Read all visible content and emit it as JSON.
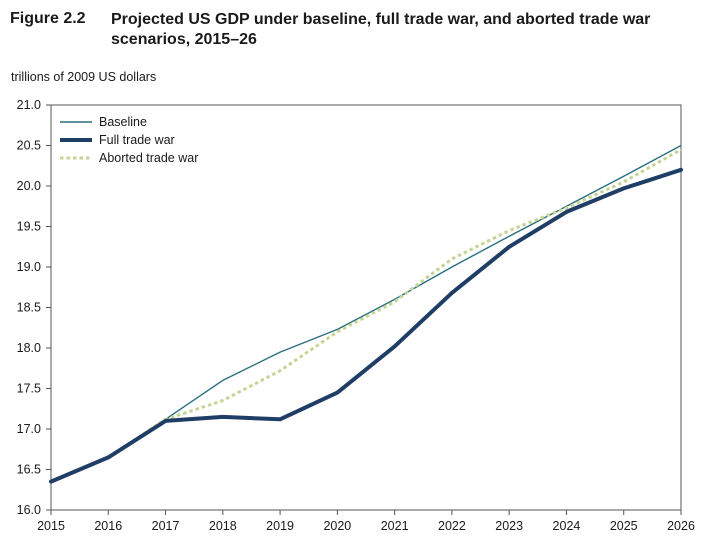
{
  "figure": {
    "label": "Figure 2.2",
    "title": "Projected US GDP under baseline, full trade war, and aborted trade war scenarios, 2015–26",
    "units": "trillions of 2009 US dollars"
  },
  "chart_data": {
    "type": "line",
    "title": "Projected US GDP under baseline, full trade war, and aborted trade war scenarios, 2015–26",
    "xlabel": "",
    "ylabel": "trillions of 2009 US dollars",
    "x": [
      2015,
      2016,
      2017,
      2018,
      2019,
      2020,
      2021,
      2022,
      2023,
      2024,
      2025,
      2026
    ],
    "x_tick_labels": [
      "2015",
      "2016",
      "2017",
      "2018",
      "2019",
      "2020",
      "2021",
      "2022",
      "2023",
      "2024",
      "2025",
      "2026"
    ],
    "ylim": [
      16.0,
      21.0
    ],
    "y_ticks": [
      16.0,
      16.5,
      17.0,
      17.5,
      18.0,
      18.5,
      19.0,
      19.5,
      20.0,
      20.5,
      21.0
    ],
    "y_tick_labels": [
      "16.0",
      "16.5",
      "17.0",
      "17.5",
      "18.0",
      "18.5",
      "19.0",
      "19.5",
      "20.0",
      "20.5",
      "21.0"
    ],
    "grid": false,
    "legend_position": "top-left",
    "series": [
      {
        "name": "Baseline",
        "color": "#2a6f7f",
        "style": "thin-solid",
        "values": [
          16.35,
          16.65,
          17.12,
          17.6,
          17.95,
          18.23,
          18.6,
          19.0,
          19.38,
          19.75,
          20.12,
          20.5
        ]
      },
      {
        "name": "Full trade war",
        "color": "#1f3e66",
        "style": "thick-solid",
        "values": [
          16.35,
          16.65,
          17.1,
          17.15,
          17.12,
          17.45,
          18.02,
          18.68,
          19.25,
          19.68,
          19.97,
          20.2
        ]
      },
      {
        "name": "Aborted trade war",
        "color": "#c6d495",
        "style": "dotted",
        "values": [
          16.35,
          16.65,
          17.12,
          17.35,
          17.72,
          18.2,
          18.57,
          19.1,
          19.45,
          19.73,
          20.05,
          20.45
        ]
      }
    ]
  }
}
